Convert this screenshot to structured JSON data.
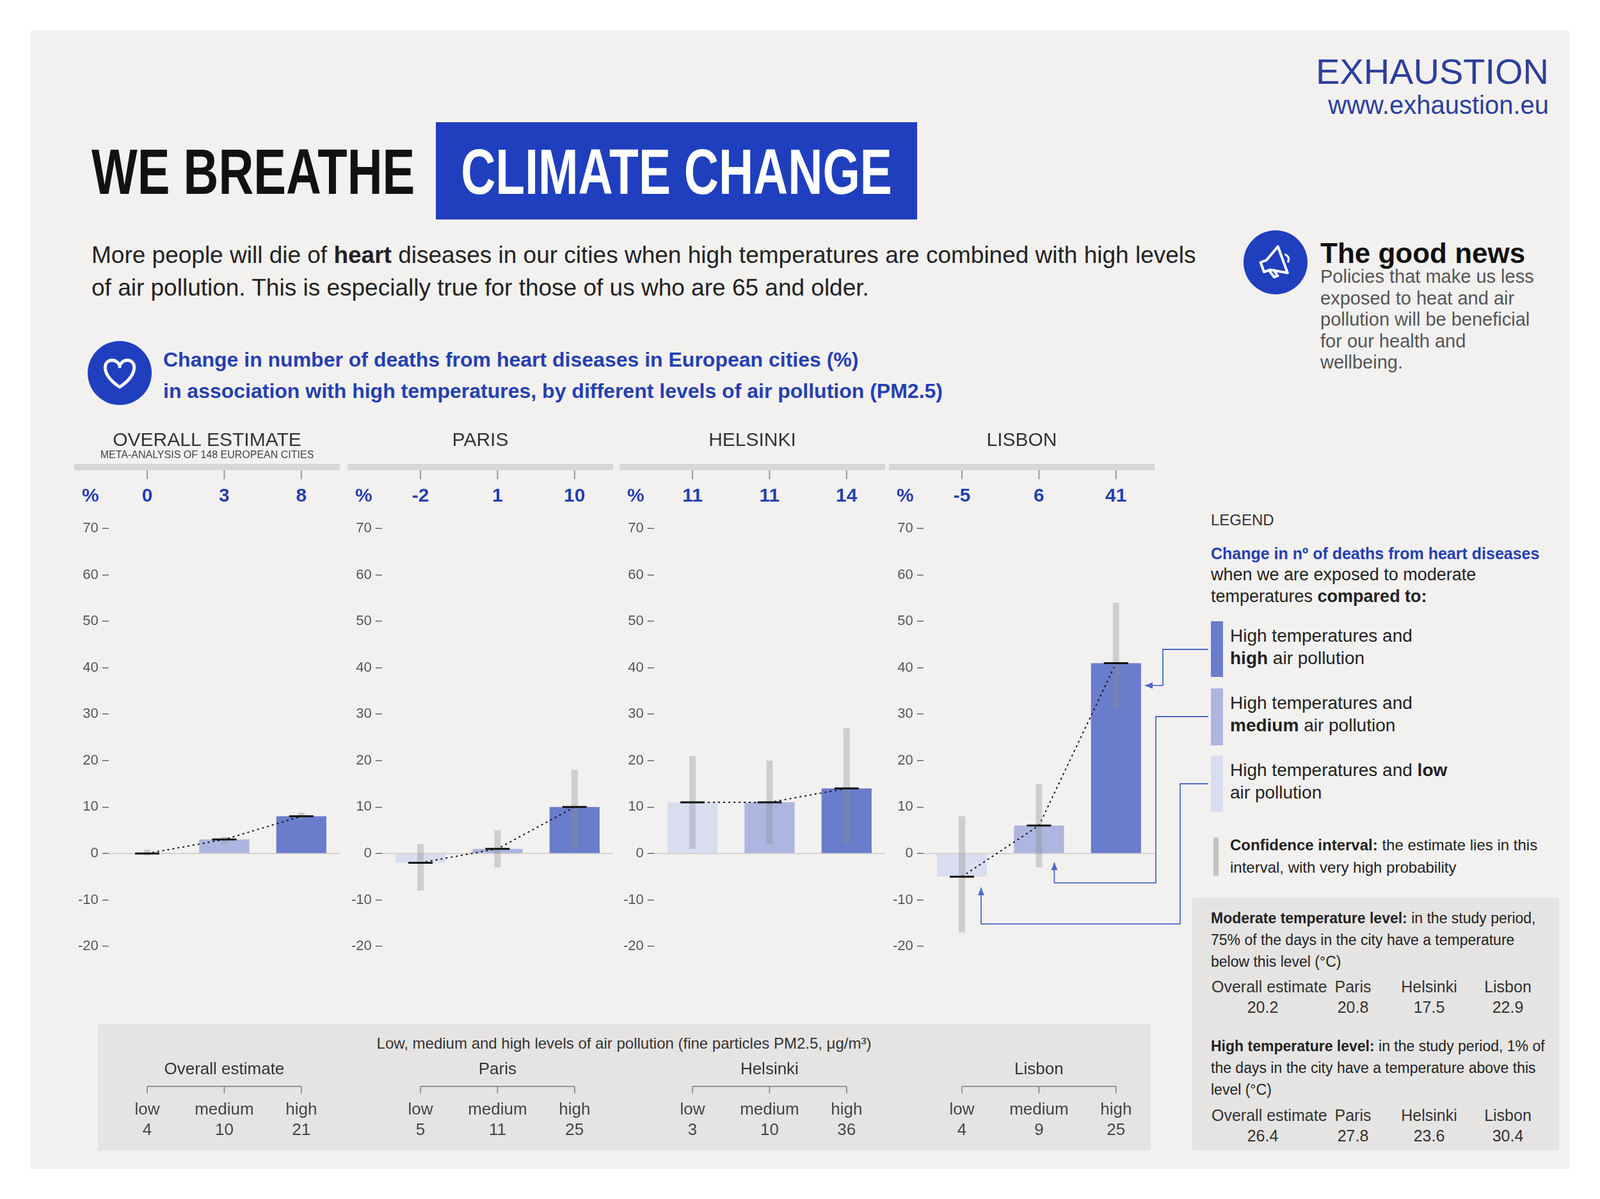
{
  "header": {
    "brand": "EXHAUSTION",
    "url": "www.exhaustion.eu"
  },
  "title": {
    "lead": "WE BREATHE",
    "highlight": "CLIMATE CHANGE"
  },
  "intro": [
    {
      "text": "More people will die of "
    },
    {
      "text": "heart",
      "bold": true
    },
    {
      "text": " diseases in our cities when high temperatures are combined with high levels of air pollution. This is especially true for those of us who are 65 and older."
    }
  ],
  "good_news": {
    "title": "The good news",
    "text": "Policies that make us less exposed to heat and air pollution will be beneficial for our health and wellbeing."
  },
  "chart_heading": [
    "Change in number of deaths from heart diseases in European cities (%)",
    "in association with high temperatures, by different levels of air pollution (PM2.5)"
  ],
  "chart_data": [
    {
      "type": "bar",
      "title": "OVERALL ESTIMATE",
      "subtitle": "META-ANALYSIS OF 148 EUROPEAN CITIES",
      "short_name": "Overall estimate",
      "ylabel": "%",
      "categories": [
        "low",
        "medium",
        "high"
      ],
      "values": [
        0,
        3,
        8
      ],
      "ci": [
        [
          -0.4,
          0.9
        ],
        [
          2.1,
          3.6
        ],
        [
          7.2,
          8.8
        ]
      ],
      "colors": [
        "#d9ddf0",
        "#adb6e0",
        "#6a7dcc"
      ],
      "line_style": "dotted",
      "data_labels": true,
      "tick_labels": "y",
      "grid": false,
      "ylim": [
        -20,
        70
      ],
      "yticks": [
        -20,
        -10,
        0,
        10,
        20,
        30,
        40,
        50,
        60,
        70
      ],
      "pm25": [
        4,
        10,
        21
      ],
      "moderate_temperature": 20.2,
      "high_temperature": 26.4
    },
    {
      "type": "bar",
      "title": "PARIS",
      "short_name": "Paris",
      "ylabel": "%",
      "categories": [
        "low",
        "medium",
        "high"
      ],
      "values": [
        -2,
        1,
        10
      ],
      "ci": [
        [
          -8,
          2
        ],
        [
          -3,
          5
        ],
        [
          1,
          18
        ]
      ],
      "colors": [
        "#d9ddf0",
        "#adb6e0",
        "#6a7dcc"
      ],
      "line_style": "dotted",
      "data_labels": true,
      "tick_labels": "y",
      "grid": false,
      "ylim": [
        -20,
        70
      ],
      "yticks": [
        -20,
        -10,
        0,
        10,
        20,
        30,
        40,
        50,
        60,
        70
      ],
      "pm25": [
        5,
        11,
        25
      ],
      "moderate_temperature": 20.8,
      "high_temperature": 27.8
    },
    {
      "type": "bar",
      "title": "HELSINKI",
      "short_name": "Helsinki",
      "ylabel": "%",
      "categories": [
        "low",
        "medium",
        "high"
      ],
      "values": [
        11,
        11,
        14
      ],
      "ci": [
        [
          1,
          21
        ],
        [
          2,
          20
        ],
        [
          2,
          27
        ]
      ],
      "colors": [
        "#d9ddf0",
        "#adb6e0",
        "#6a7dcc"
      ],
      "line_style": "dotted",
      "data_labels": true,
      "tick_labels": "y",
      "grid": false,
      "ylim": [
        -20,
        70
      ],
      "yticks": [
        -20,
        -10,
        0,
        10,
        20,
        30,
        40,
        50,
        60,
        70
      ],
      "pm25": [
        3,
        10,
        36
      ],
      "moderate_temperature": 17.5,
      "high_temperature": 23.6
    },
    {
      "type": "bar",
      "title": "LISBON",
      "short_name": "Lisbon",
      "ylabel": "%",
      "categories": [
        "low",
        "medium",
        "high"
      ],
      "values": [
        -5,
        6,
        41
      ],
      "ci": [
        [
          -17,
          8
        ],
        [
          -3,
          15
        ],
        [
          31,
          54
        ]
      ],
      "colors": [
        "#d9ddf0",
        "#adb6e0",
        "#6a7dcc"
      ],
      "line_style": "dotted",
      "data_labels": true,
      "tick_labels": "y",
      "grid": false,
      "ylim": [
        -20,
        70
      ],
      "yticks": [
        -20,
        -10,
        0,
        10,
        20,
        30,
        40,
        50,
        60,
        70
      ],
      "pm25": [
        4,
        9,
        25
      ],
      "moderate_temperature": 22.9,
      "high_temperature": 30.4
    }
  ],
  "pollution_box": {
    "title": "Low, medium and high levels of air pollution (fine particles PM2.5, μg/m³)"
  },
  "legend_box": {
    "title": "LEGEND",
    "heading": "Change in nº of deaths from heart diseases",
    "text": [
      {
        "text": "when we are exposed to moderate temperatures "
      },
      {
        "text": "compared to:",
        "bold": true
      }
    ],
    "items": [
      {
        "color": "#6a7dcc",
        "parts": [
          {
            "text": "High temperatures and "
          },
          {
            "text": "high",
            "bold": true
          },
          {
            "text": " air pollution"
          }
        ]
      },
      {
        "color": "#adb6e0",
        "parts": [
          {
            "text": "High temperatures and "
          },
          {
            "text": "medium",
            "bold": true
          },
          {
            "text": " air pollution"
          }
        ]
      },
      {
        "color": "#d9ddf0",
        "parts": [
          {
            "text": "High temperatures and "
          },
          {
            "text": "low",
            "bold": true
          },
          {
            "text": " air pollution"
          }
        ]
      }
    ],
    "ci": [
      {
        "text": "Confidence interval:",
        "bold": true
      },
      {
        "text": " the estimate lies in this interval, with very high probability"
      }
    ]
  },
  "temperature_box": {
    "moderate": [
      {
        "text": "Moderate temperature level:",
        "bold": true
      },
      {
        "text": " in the study period, 75% of the days in the city have a temperature below this level (°C)"
      }
    ],
    "high": [
      {
        "text": "High temperature level:",
        "bold": true
      },
      {
        "text": " in the study period, 1% of the days in the city have a temperature above this level (°C)"
      }
    ]
  }
}
